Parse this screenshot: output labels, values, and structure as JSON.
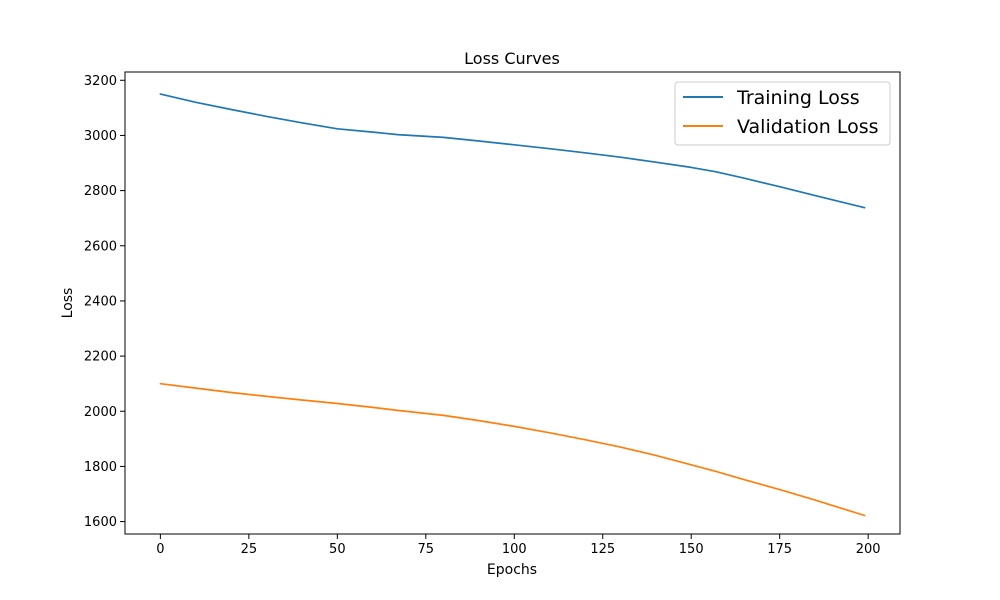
{
  "chart_data": {
    "type": "line",
    "title": "Loss Curves",
    "xlabel": "Epochs",
    "ylabel": "Loss",
    "xlim": [
      -10,
      209
    ],
    "ylim": [
      1555,
      3230
    ],
    "xticks": [
      0,
      25,
      50,
      75,
      100,
      125,
      150,
      175,
      200
    ],
    "yticks": [
      1600,
      1800,
      2000,
      2200,
      2400,
      2600,
      2800,
      3000,
      3200
    ],
    "grid": false,
    "legend_position": "top-right",
    "x": [
      0,
      10,
      20,
      30,
      40,
      50,
      60,
      67,
      80,
      90,
      100,
      110,
      120,
      130,
      140,
      150,
      157,
      165,
      175,
      185,
      199
    ],
    "series": [
      {
        "name": "Training Loss",
        "color": "#1f77b4",
        "values": [
          3150,
          3120,
          3094,
          3069,
          3046,
          3024,
          3012,
          3003,
          2993,
          2980,
          2966,
          2952,
          2937,
          2921,
          2903,
          2884,
          2868,
          2845,
          2814,
          2782,
          2738
        ]
      },
      {
        "name": "Validation Loss",
        "color": "#ff7f0e",
        "values": [
          2100,
          2084,
          2068,
          2054,
          2041,
          2028,
          2014,
          2003,
          1985,
          1966,
          1945,
          1922,
          1897,
          1870,
          1840,
          1806,
          1782,
          1752,
          1716,
          1678,
          1622
        ]
      }
    ]
  }
}
